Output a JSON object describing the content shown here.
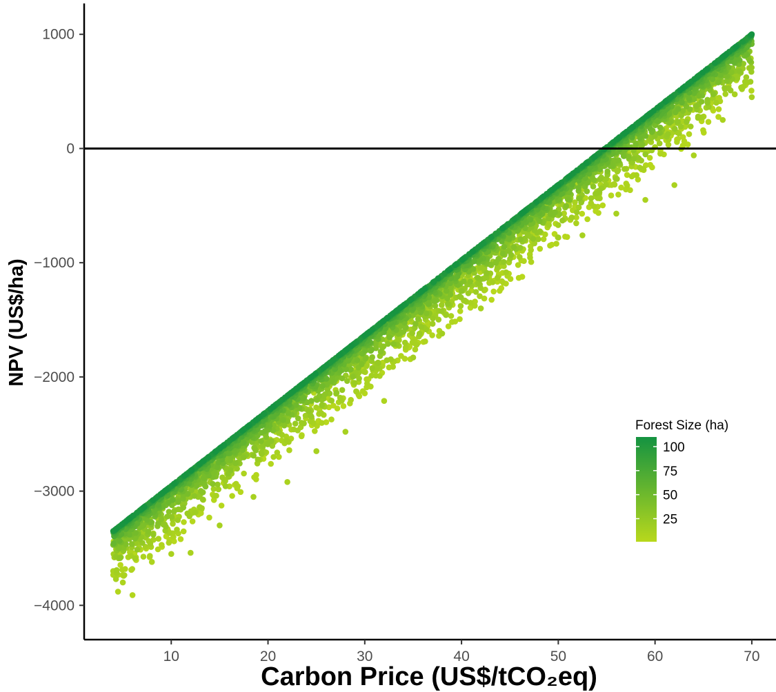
{
  "chart_data": {
    "type": "scatter",
    "xlabel": "Carbon Price (US$/tCO₂eq)",
    "ylabel": "NPV (US$/ha)",
    "xlim": [
      1,
      72.5
    ],
    "ylim": [
      -4300,
      1270
    ],
    "x_ticks": [
      10,
      20,
      30,
      40,
      50,
      60,
      70
    ],
    "y_ticks": [
      -4000,
      -3000,
      -2000,
      -1000,
      0,
      1000
    ],
    "reference_line": {
      "y": 0,
      "color": "#000000"
    },
    "grid": false,
    "color_scale": {
      "title": "Forest Size (ha)",
      "variable": "Forest Size",
      "ticks": [
        25,
        50,
        75,
        100
      ],
      "range": [
        1,
        110
      ],
      "low_color": "#b8d81c",
      "high_color": "#149341"
    },
    "legend_position": "right",
    "trend": {
      "description": "NPV rises linearly with carbon price; larger forests sit on the upper edge",
      "upper_edge": [
        [
          4,
          -3350
        ],
        [
          70,
          1000
        ]
      ],
      "lower_edge": [
        [
          4,
          -3920
        ],
        [
          70,
          250
        ]
      ],
      "break_even_carbon_price_range": [
        54,
        65
      ]
    },
    "points": [
      {
        "x": 4,
        "y": -3350,
        "size": 105
      },
      {
        "x": 4,
        "y": -3470,
        "size": 40
      },
      {
        "x": 4,
        "y": -3700,
        "size": 10
      },
      {
        "x": 4.5,
        "y": -3880,
        "size": 5
      },
      {
        "x": 6,
        "y": -3910,
        "size": 5
      },
      {
        "x": 5,
        "y": -3800,
        "size": 8
      },
      {
        "x": 8,
        "y": -3620,
        "size": 8
      },
      {
        "x": 10,
        "y": -3550,
        "size": 10
      },
      {
        "x": 12,
        "y": -3540,
        "size": 10
      },
      {
        "x": 15,
        "y": -3300,
        "size": 12
      },
      {
        "x": 18.5,
        "y": -3050,
        "size": 12
      },
      {
        "x": 22,
        "y": -2920,
        "size": 10
      },
      {
        "x": 25,
        "y": -2650,
        "size": 12
      },
      {
        "x": 28,
        "y": -2480,
        "size": 12
      },
      {
        "x": 32,
        "y": -2210,
        "size": 8
      },
      {
        "x": 35,
        "y": -1830,
        "size": 15
      },
      {
        "x": 38,
        "y": -1620,
        "size": 15
      },
      {
        "x": 42,
        "y": -1400,
        "size": 12
      },
      {
        "x": 46,
        "y": -950,
        "size": 15
      },
      {
        "x": 50,
        "y": -780,
        "size": 15
      },
      {
        "x": 52.5,
        "y": -760,
        "size": 12
      },
      {
        "x": 56,
        "y": -570,
        "size": 12
      },
      {
        "x": 59,
        "y": -450,
        "size": 10
      },
      {
        "x": 62,
        "y": -320,
        "size": 10
      },
      {
        "x": 64,
        "y": -60,
        "size": 10
      },
      {
        "x": 67,
        "y": 250,
        "size": 10
      },
      {
        "x": 70,
        "y": 450,
        "size": 12
      },
      {
        "x": 70,
        "y": 1000,
        "size": 110
      }
    ]
  }
}
